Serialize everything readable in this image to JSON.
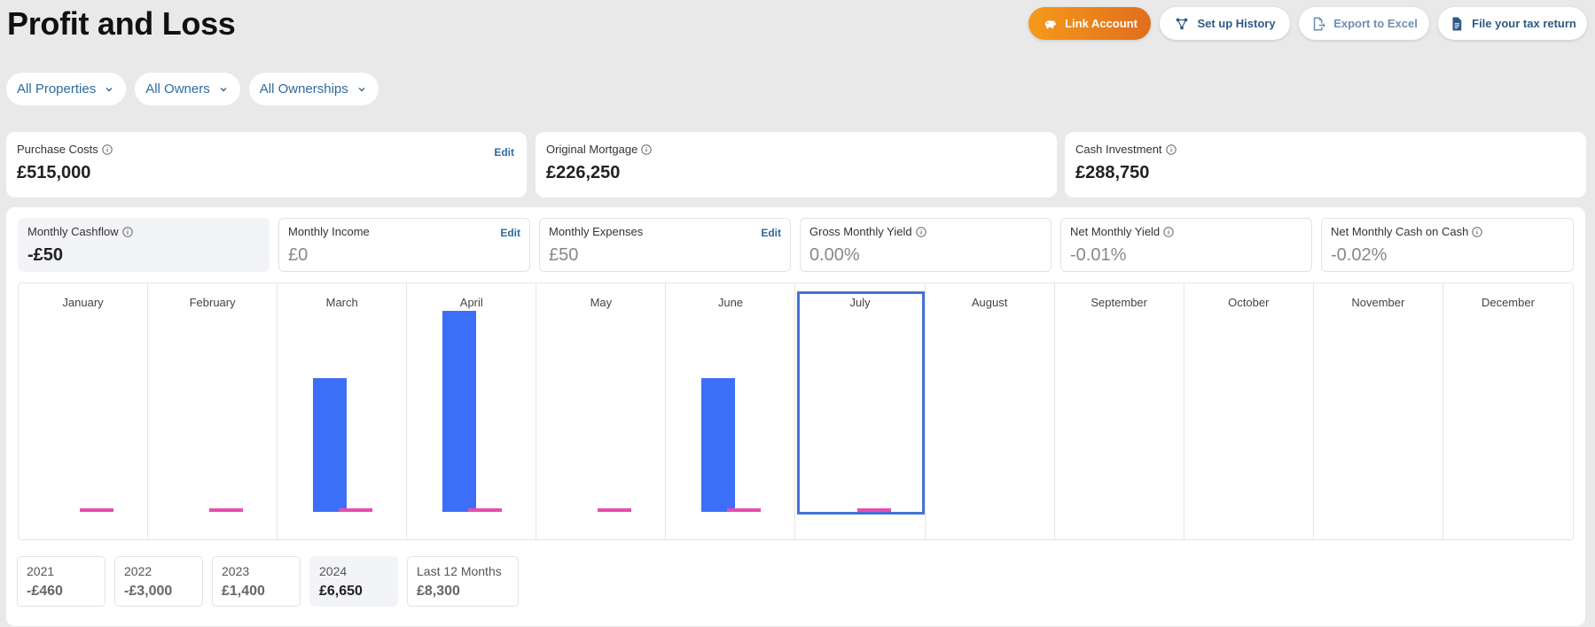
{
  "header": {
    "title": "Profit and Loss",
    "actions": [
      {
        "label": "Link Account",
        "icon": "piggy-bank-icon"
      },
      {
        "label": "Set up History",
        "icon": "flow-icon"
      },
      {
        "label": "Export to Excel",
        "icon": "export-file-icon"
      },
      {
        "label": "File your tax return",
        "icon": "document-icon"
      }
    ]
  },
  "filters": [
    {
      "label": "All Properties"
    },
    {
      "label": "All Owners"
    },
    {
      "label": "All Ownerships"
    }
  ],
  "summary": [
    {
      "label": "Purchase Costs",
      "value": "£515,000",
      "edit": "Edit"
    },
    {
      "label": "Original Mortgage",
      "value": "£226,250"
    },
    {
      "label": "Cash Investment",
      "value": "£288,750"
    }
  ],
  "metrics": [
    {
      "label": "Monthly Cashflow",
      "value": "-£50",
      "info": true
    },
    {
      "label": "Monthly Income",
      "value": "£0",
      "edit": "Edit"
    },
    {
      "label": "Monthly Expenses",
      "value": "£50",
      "edit": "Edit"
    },
    {
      "label": "Gross Monthly Yield",
      "value": "0.00%",
      "info": true
    },
    {
      "label": "Net Monthly Yield",
      "value": "-0.01%",
      "info": true
    },
    {
      "label": "Net Monthly Cash on Cash",
      "value": "-0.02%",
      "info": true
    }
  ],
  "chart_data": {
    "type": "bar",
    "categories": [
      "January",
      "February",
      "March",
      "April",
      "May",
      "June",
      "July",
      "August",
      "September",
      "October",
      "November",
      "December"
    ],
    "series": [
      {
        "values": [
          0,
          0,
          0.65,
          0.98,
          0,
          0.65,
          0,
          null,
          null,
          null,
          null,
          null
        ],
        "color": "#3c6ef7"
      },
      {
        "values": [
          0.02,
          0.02,
          0.02,
          0.02,
          0.02,
          0.02,
          0.02,
          null,
          null,
          null,
          null,
          null
        ],
        "color": "#e94caf"
      }
    ],
    "selected_category": "July"
  },
  "years": [
    {
      "label": "2021",
      "value": "-£460"
    },
    {
      "label": "2022",
      "value": "-£3,000"
    },
    {
      "label": "2023",
      "value": "£1,400"
    },
    {
      "label": "2024",
      "value": "£6,650",
      "selected": true
    },
    {
      "label": "Last 12 Months",
      "value": "£8,300"
    }
  ],
  "colors": {
    "accent": "#2e6aa0",
    "income_bar": "#3c6ef7",
    "expense_bar": "#e94caf",
    "primary_button_start": "#f59a1b",
    "primary_button_end": "#e06e1d",
    "selection": "#4472d6"
  }
}
